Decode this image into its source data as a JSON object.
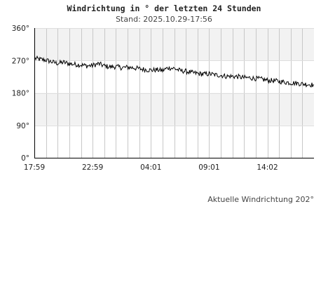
{
  "chart_data": {
    "type": "line",
    "title": "Windrichtung in ° der letzten 24 Stunden",
    "subtitle": "Stand: 2025.10.29-17:56",
    "y_ticks": [
      "360°",
      "270°",
      "180°",
      "90°",
      "0°"
    ],
    "ylim": [
      0,
      360
    ],
    "x_ticks": [
      "17:59",
      "22:59",
      "04:01",
      "09:01",
      "14:02"
    ],
    "x_hours_range": [
      0,
      24
    ],
    "grid": true,
    "series": [
      {
        "color": "#000000",
        "x_hours": [
          0,
          0.5,
          1,
          1.5,
          2,
          2.5,
          3,
          3.5,
          4,
          4.5,
          5,
          5.5,
          6,
          6.5,
          7,
          7.5,
          8,
          8.5,
          9,
          9.5,
          10,
          10.5,
          11,
          11.5,
          12,
          12.5,
          13,
          13.5,
          14,
          14.5,
          15,
          15.5,
          16,
          16.5,
          17,
          17.5,
          18,
          18.5,
          19,
          19.5,
          20,
          20.5,
          21,
          21.5,
          22,
          22.5,
          23,
          23.5,
          24
        ],
        "values": [
          276,
          273,
          271,
          266,
          262,
          265,
          261,
          259,
          258,
          255,
          256,
          261,
          255,
          252,
          253,
          250,
          251,
          250,
          247,
          245,
          243,
          244,
          242,
          250,
          248,
          242,
          240,
          236,
          234,
          232,
          233,
          230,
          229,
          226,
          226,
          225,
          222,
          222,
          220,
          218,
          215,
          214,
          212,
          210,
          208,
          207,
          205,
          204,
          202
        ]
      }
    ]
  },
  "footer": {
    "current_text": "Aktuelle Windrichtung 202°"
  }
}
